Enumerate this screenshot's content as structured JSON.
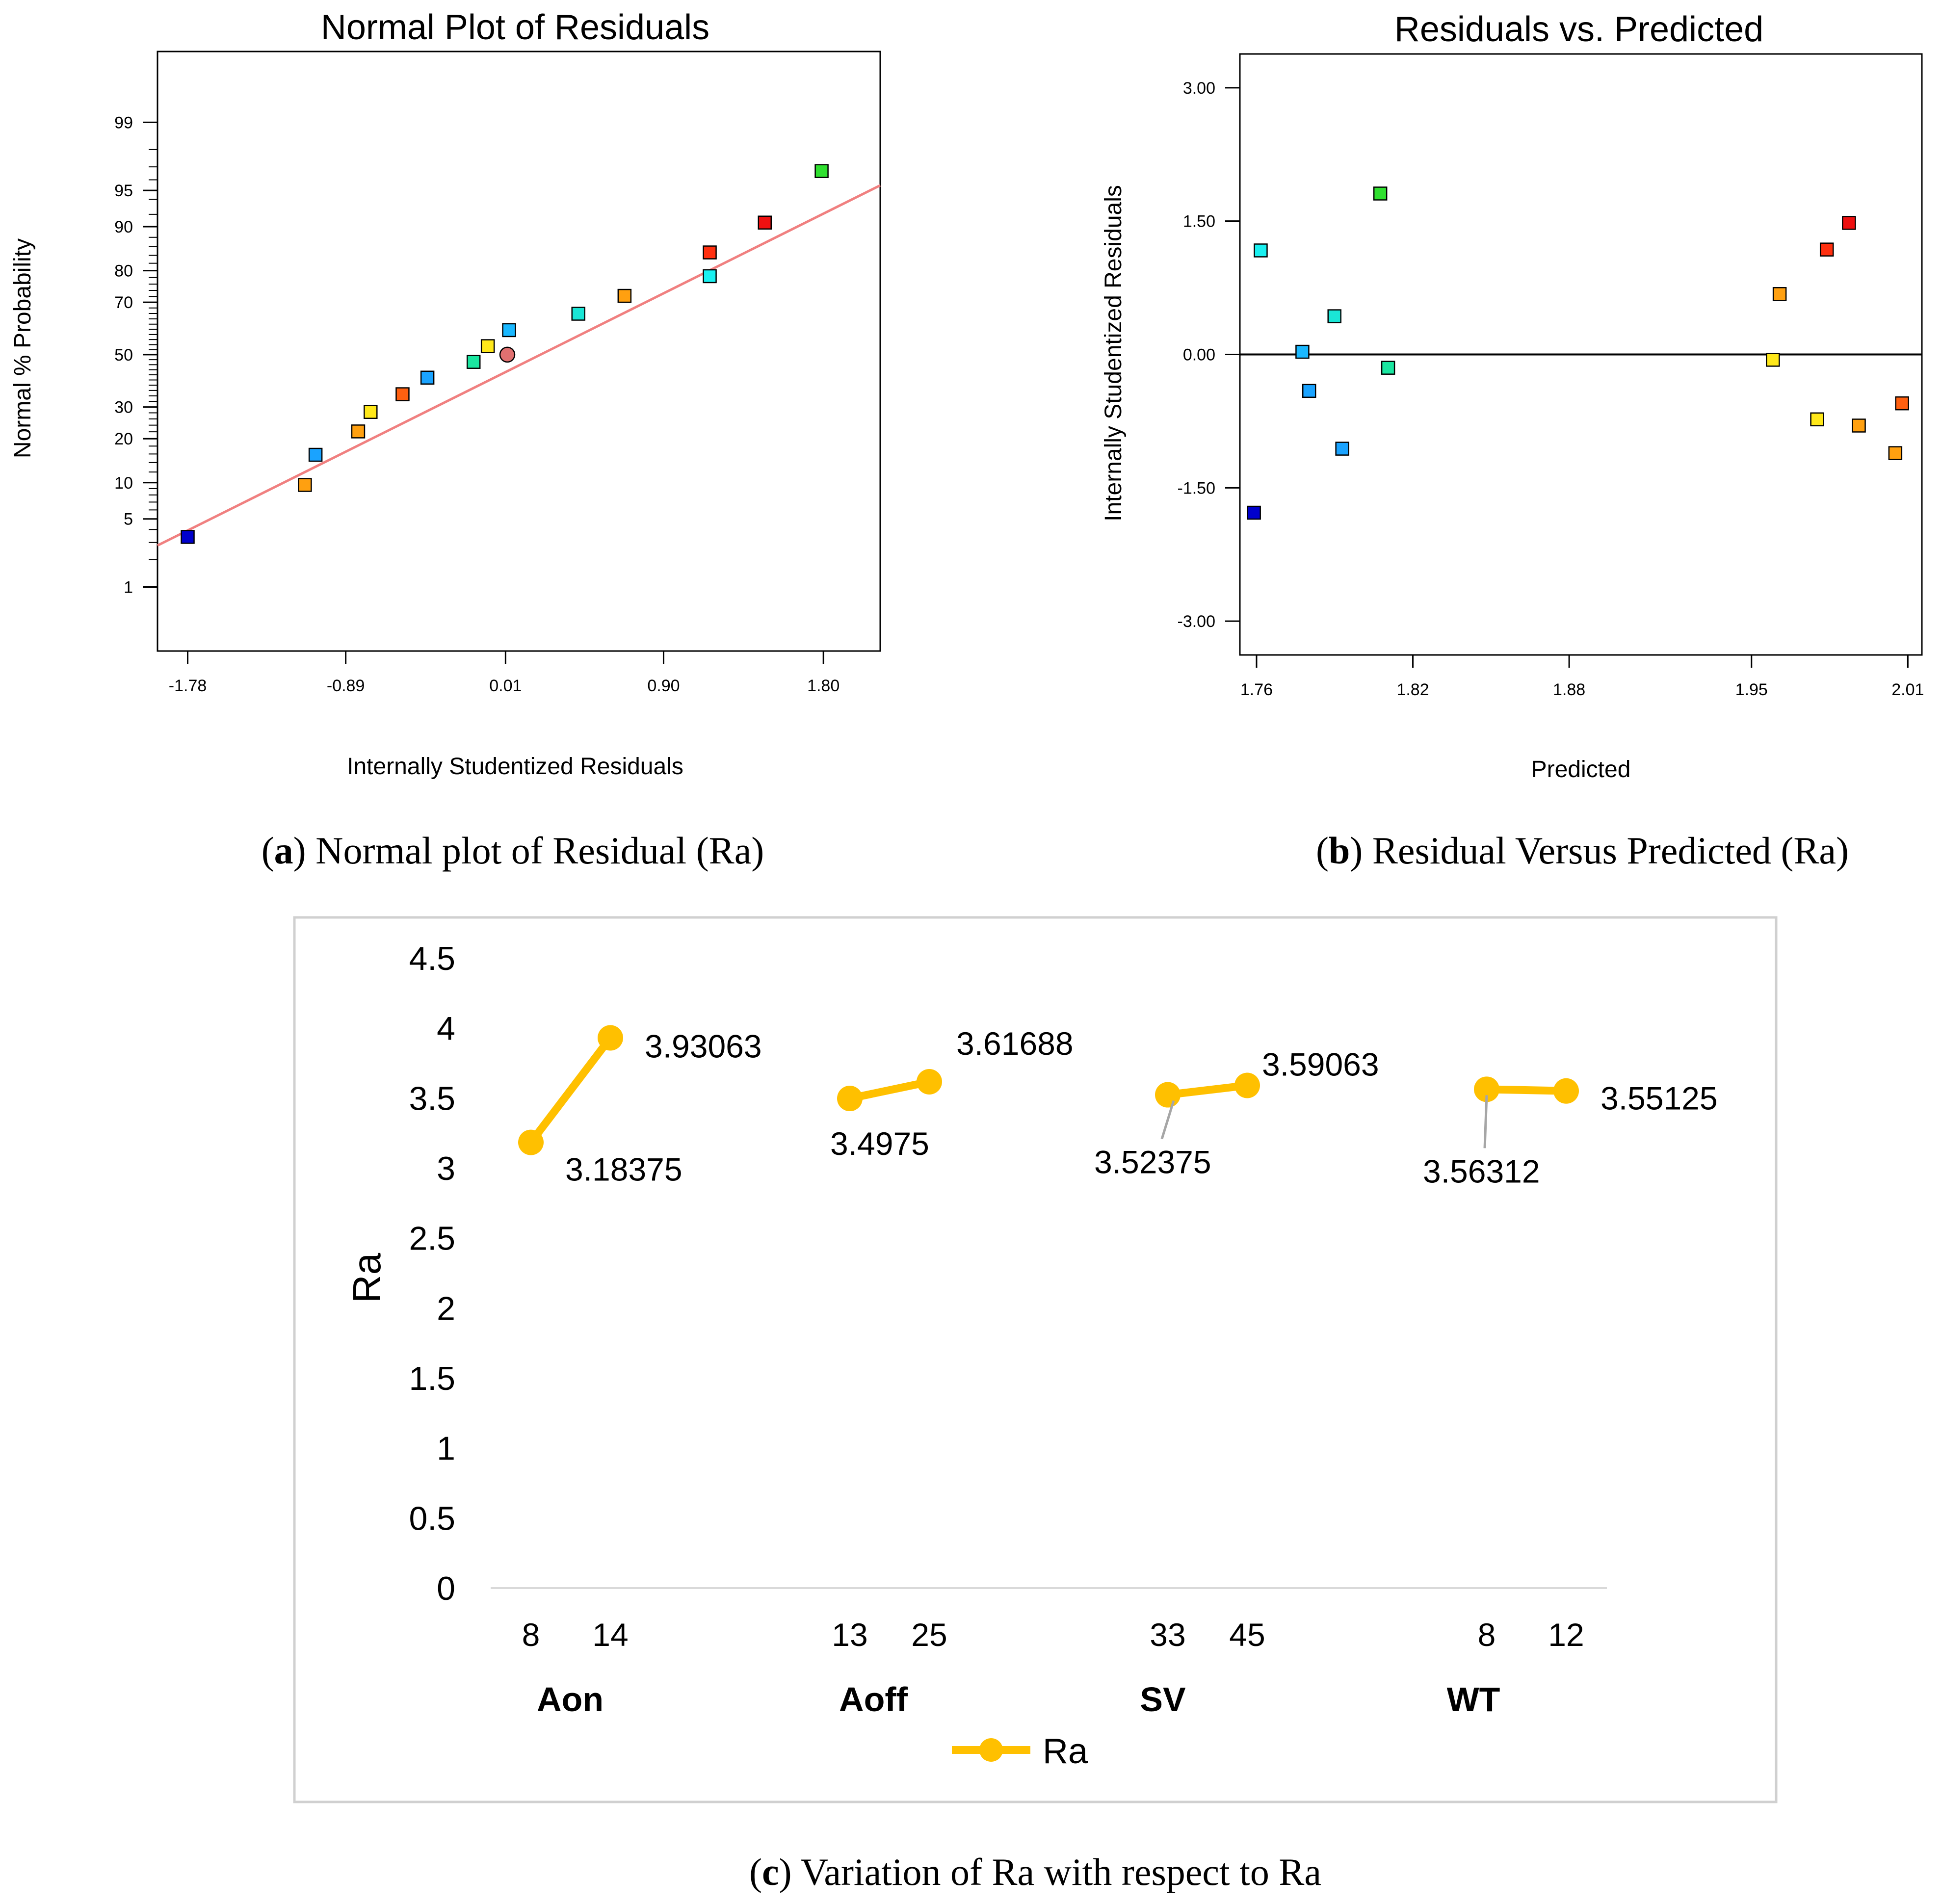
{
  "chart_data": [
    {
      "id": "a",
      "type": "scatter",
      "title": "Normal Plot of Residuals",
      "xlabel": "Internally Studentized Residuals",
      "ylabel": "Normal % Probability",
      "xlim": [
        -1.95,
        2.12
      ],
      "yscale": "normal-probability",
      "ylim_probability": [
        0.15,
        99.88
      ],
      "xticks": [
        "-1.78",
        "-0.89",
        "0.01",
        "0.90",
        "1.80"
      ],
      "xtick_values": [
        -1.78,
        -0.89,
        0.01,
        0.9,
        1.8
      ],
      "yticks": [
        "1",
        "5",
        "10",
        "20",
        "30",
        "50",
        "70",
        "80",
        "90",
        "95",
        "99"
      ],
      "ytick_values": [
        1,
        5,
        10,
        20,
        30,
        50,
        70,
        80,
        90,
        95,
        99
      ],
      "fit_line": {
        "color": "#f08080",
        "points": [
          [
            -1.95,
            2.8
          ],
          [
            2.12,
            95.5
          ]
        ]
      },
      "points": [
        {
          "x": -1.78,
          "y": 3.4,
          "color": "#0000cc"
        },
        {
          "x": -1.12,
          "y": 9.6,
          "color": "#ffa010"
        },
        {
          "x": -1.06,
          "y": 15.8,
          "color": "#1aa3ff"
        },
        {
          "x": -0.82,
          "y": 22.1,
          "color": "#ffa010"
        },
        {
          "x": -0.75,
          "y": 28.3,
          "color": "#ffe81a"
        },
        {
          "x": -0.57,
          "y": 34.6,
          "color": "#ff6010"
        },
        {
          "x": -0.43,
          "y": 40.9,
          "color": "#1aa3ff"
        },
        {
          "x": -0.17,
          "y": 47.1,
          "color": "#1ae6a0"
        },
        {
          "x": -0.09,
          "y": 53.4,
          "color": "#ffe81a"
        },
        {
          "x": 0.02,
          "y": 50.0,
          "color": "#e07070",
          "shape": "circle"
        },
        {
          "x": 0.03,
          "y": 59.7,
          "color": "#1ab8ff"
        },
        {
          "x": 0.42,
          "y": 65.9,
          "color": "#1ae6d6"
        },
        {
          "x": 0.68,
          "y": 72.2,
          "color": "#ffa010"
        },
        {
          "x": 1.16,
          "y": 78.4,
          "color": "#1af0f0"
        },
        {
          "x": 1.16,
          "y": 84.7,
          "color": "#ff3010"
        },
        {
          "x": 1.47,
          "y": 90.7,
          "color": "#ee1010"
        },
        {
          "x": 1.79,
          "y": 96.7,
          "color": "#30e030"
        }
      ]
    },
    {
      "id": "b",
      "type": "scatter",
      "title": "Residuals vs. Predicted",
      "xlabel": "Predicted",
      "ylabel": "Internally Studentized Residuals",
      "xlim": [
        1.7536,
        2.0154
      ],
      "ylim": [
        -3.38,
        3.38
      ],
      "xticks": [
        "1.76",
        "1.82",
        "1.88",
        "1.95",
        "2.01"
      ],
      "xtick_values": [
        1.76,
        1.82,
        1.88,
        1.95,
        2.01
      ],
      "yticks": [
        "3.00",
        "1.50",
        "0.00",
        "-1.50",
        "-3.00"
      ],
      "ytick_values": [
        3.0,
        1.5,
        0.0,
        -1.5,
        -3.0
      ],
      "zero_line": 0.0,
      "points": [
        {
          "x": 1.759,
          "y": -1.78,
          "color": "#0000cc"
        },
        {
          "x": 1.7616,
          "y": 1.17,
          "color": "#1af0f0"
        },
        {
          "x": 1.7776,
          "y": 0.03,
          "color": "#1ab8ff"
        },
        {
          "x": 1.7802,
          "y": -0.41,
          "color": "#1aa3ff"
        },
        {
          "x": 1.7899,
          "y": 0.43,
          "color": "#1ae6d6"
        },
        {
          "x": 1.7929,
          "y": -1.06,
          "color": "#1aa3ff"
        },
        {
          "x": 1.8075,
          "y": 1.81,
          "color": "#30e030"
        },
        {
          "x": 1.8105,
          "y": -0.15,
          "color": "#1ae6a0"
        },
        {
          "x": 1.9582,
          "y": -0.06,
          "color": "#ffe81a"
        },
        {
          "x": 1.9608,
          "y": 0.68,
          "color": "#ffa010"
        },
        {
          "x": 1.9752,
          "y": -0.73,
          "color": "#ffe81a"
        },
        {
          "x": 1.9789,
          "y": 1.18,
          "color": "#ff3010"
        },
        {
          "x": 1.9874,
          "y": 1.48,
          "color": "#ee1010"
        },
        {
          "x": 1.9912,
          "y": -0.8,
          "color": "#ffa010"
        },
        {
          "x": 2.0052,
          "y": -1.11,
          "color": "#ffa010"
        },
        {
          "x": 2.0078,
          "y": -0.55,
          "color": "#ff6010"
        }
      ]
    },
    {
      "id": "c",
      "type": "line",
      "ylabel": "Ra",
      "ylim": [
        0,
        4.5
      ],
      "yticks": [
        "0",
        "0.5",
        "1",
        "1.5",
        "2",
        "2.5",
        "3",
        "3.5",
        "4",
        "4.5"
      ],
      "ytick_values": [
        0,
        0.5,
        1,
        1.5,
        2,
        2.5,
        3,
        3.5,
        4,
        4.5
      ],
      "legend": "Ra",
      "legend_position": "bottom",
      "color": "#ffc000",
      "groups": [
        {
          "name": "Aon",
          "levels": [
            "8",
            "14"
          ],
          "values": [
            3.18375,
            3.93063
          ],
          "labels": [
            "3.18375",
            "3.93063"
          ]
        },
        {
          "name": "Aoff",
          "levels": [
            "13",
            "25"
          ],
          "values": [
            3.4975,
            3.61688
          ],
          "labels": [
            "3.4975",
            "3.61688"
          ]
        },
        {
          "name": "SV",
          "levels": [
            "33",
            "45"
          ],
          "values": [
            3.52375,
            3.59063
          ],
          "labels": [
            "3.52375",
            "3.59063"
          ]
        },
        {
          "name": "WT",
          "levels": [
            "8",
            "12"
          ],
          "values": [
            3.56312,
            3.55125
          ],
          "labels": [
            "3.56312",
            "3.55125"
          ]
        }
      ]
    }
  ],
  "captions": {
    "a": {
      "letter": "a",
      "text": ") Normal plot of Residual (Ra)"
    },
    "b": {
      "letter": "b",
      "text": ") Residual Versus Predicted (Ra)"
    },
    "c": {
      "letter": "c",
      "text": ") Variation of Ra with respect to Ra"
    }
  }
}
